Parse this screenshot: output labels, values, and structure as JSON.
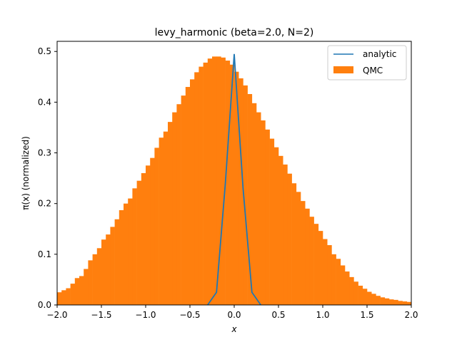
{
  "chart_data": {
    "type": "bar",
    "title": "levy_harmonic (beta=2.0, N=2)",
    "xlabel": "x",
    "ylabel": "π(x) (normalized)",
    "xlim": [
      -2.0,
      2.0
    ],
    "ylim": [
      0.0,
      0.52
    ],
    "grid": false,
    "legend_position": "top-right",
    "x_ticks": [
      -2.0,
      -1.5,
      -1.0,
      -0.5,
      0.0,
      0.5,
      1.0,
      1.5,
      2.0
    ],
    "x_tick_labels": [
      "−2.0",
      "−1.5",
      "−1.0",
      "−0.5",
      "0.0",
      "0.5",
      "1.0",
      "1.5",
      "2.0"
    ],
    "y_ticks": [
      0.0,
      0.1,
      0.2,
      0.3,
      0.4,
      0.5
    ],
    "y_tick_labels": [
      "0.0",
      "0.1",
      "0.2",
      "0.3",
      "0.4",
      "0.5"
    ],
    "series": [
      {
        "name": "QMC",
        "kind": "histogram",
        "color": "#ff7f0e",
        "bin_edges_start": -2.0,
        "bin_width": 0.05,
        "values": [
          0.025,
          0.029,
          0.033,
          0.042,
          0.053,
          0.057,
          0.071,
          0.088,
          0.1,
          0.112,
          0.129,
          0.139,
          0.154,
          0.169,
          0.187,
          0.2,
          0.21,
          0.23,
          0.245,
          0.26,
          0.275,
          0.29,
          0.31,
          0.33,
          0.342,
          0.361,
          0.38,
          0.396,
          0.413,
          0.43,
          0.445,
          0.459,
          0.47,
          0.478,
          0.486,
          0.49,
          0.49,
          0.488,
          0.482,
          0.474,
          0.46,
          0.447,
          0.433,
          0.416,
          0.398,
          0.38,
          0.364,
          0.346,
          0.328,
          0.311,
          0.294,
          0.277,
          0.259,
          0.24,
          0.223,
          0.205,
          0.19,
          0.174,
          0.16,
          0.146,
          0.13,
          0.118,
          0.1,
          0.091,
          0.078,
          0.066,
          0.055,
          0.046,
          0.038,
          0.032,
          0.026,
          0.022,
          0.018,
          0.015,
          0.013,
          0.011,
          0.01,
          0.008,
          0.007,
          0.006
        ]
      },
      {
        "name": "analytic",
        "kind": "line",
        "color": "#1f77b4",
        "x": [
          -0.3,
          -0.2,
          -0.1,
          0.0,
          0.1,
          0.2,
          0.3
        ],
        "y": [
          0.0,
          0.025,
          0.24,
          0.495,
          0.23,
          0.025,
          0.0
        ]
      }
    ]
  }
}
